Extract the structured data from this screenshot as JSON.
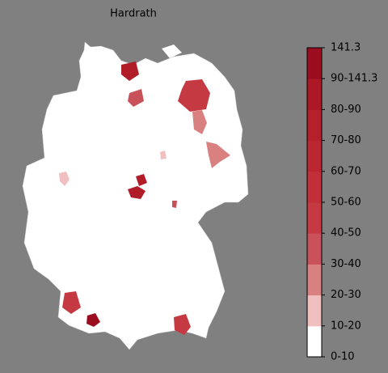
{
  "title": "Hardrath",
  "colorbar": {
    "labels": [
      "0-10",
      "10-20",
      "20-30",
      "30-40",
      "40-50",
      "50-60",
      "60-70",
      "70-80",
      "80-90",
      "90-141.3",
      "141.3"
    ]
  }
}
